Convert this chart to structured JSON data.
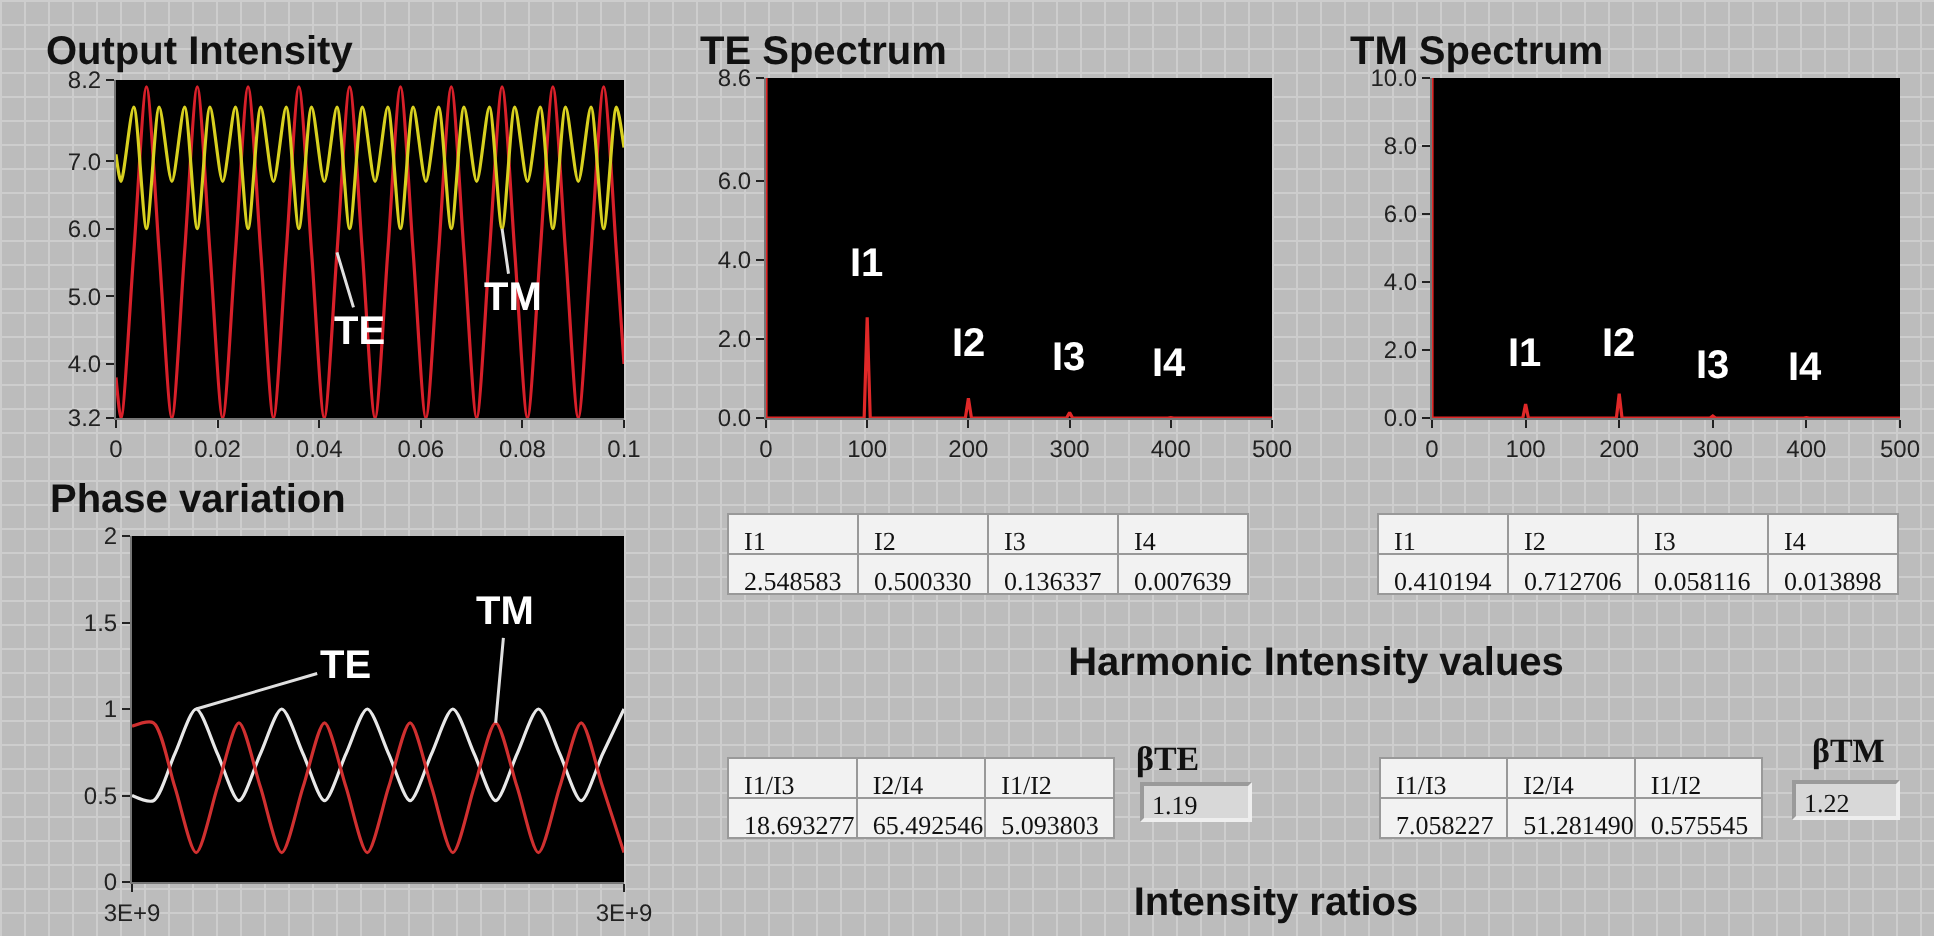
{
  "chart_data": [
    {
      "type": "line",
      "title": "Output Intensity",
      "x": [
        0,
        0.001,
        0.0035,
        0.006,
        0.0085,
        0.011,
        0.0135,
        0.016,
        0.0185,
        0.021,
        0.0235,
        0.026,
        0.0285,
        0.031,
        0.0335,
        0.036,
        0.0385,
        0.041,
        0.0435,
        0.046,
        0.0485,
        0.051,
        0.0535,
        0.056,
        0.0585,
        0.061,
        0.0635,
        0.066,
        0.0685,
        0.071,
        0.0735,
        0.076,
        0.0785,
        0.081,
        0.0835,
        0.086,
        0.0885,
        0.091,
        0.0935,
        0.096,
        0.0985,
        0.1
      ],
      "series": [
        {
          "name": "TE",
          "color": "#d8202a",
          "values": [
            3.8,
            3.2,
            5.65,
            8.1,
            5.65,
            3.2,
            5.65,
            8.1,
            5.65,
            3.2,
            5.65,
            8.1,
            5.65,
            3.2,
            5.65,
            8.1,
            5.65,
            3.2,
            5.65,
            8.1,
            5.65,
            3.2,
            5.65,
            8.1,
            5.65,
            3.2,
            5.65,
            8.1,
            5.65,
            3.2,
            5.65,
            8.1,
            5.65,
            3.2,
            5.65,
            8.1,
            5.65,
            3.2,
            5.65,
            8.1,
            5.65,
            4.0
          ]
        },
        {
          "name": "TM",
          "color": "#d8d020",
          "values": [
            7.1,
            6.7,
            7.8,
            6.0,
            7.8,
            6.7,
            7.8,
            6.0,
            7.8,
            6.7,
            7.8,
            6.0,
            7.8,
            6.7,
            7.8,
            6.0,
            7.8,
            6.7,
            7.8,
            6.0,
            7.8,
            6.7,
            7.8,
            6.0,
            7.8,
            6.7,
            7.8,
            6.0,
            7.8,
            6.7,
            7.8,
            6.0,
            7.8,
            6.7,
            7.8,
            6.0,
            7.8,
            6.7,
            7.8,
            6.0,
            7.8,
            7.2
          ]
        }
      ],
      "xlim": [
        0,
        0.1
      ],
      "xticks": [
        0,
        0.02,
        0.04,
        0.06,
        0.08,
        0.1
      ],
      "ylim": [
        3.2,
        8.2
      ],
      "yticks": [
        3.2,
        {
          "value": 4,
          "label": "4.0"
        },
        {
          "value": 5,
          "label": "5.0"
        },
        {
          "value": 6,
          "label": "6.0"
        },
        {
          "value": 7,
          "label": "7.0"
        },
        8.2
      ]
    },
    {
      "type": "line",
      "title": "TE Spectrum",
      "series": [
        {
          "color": "#e02828",
          "x": [
            0,
            0,
            3,
            97,
            100,
            103,
            197,
            200,
            203,
            297,
            300,
            303,
            397,
            400,
            403,
            500
          ],
          "values": [
            8.6,
            0,
            0,
            0,
            2.548583,
            0,
            0,
            0.50033,
            0,
            0,
            0.136337,
            0,
            0,
            0.007639,
            0,
            0
          ]
        }
      ],
      "xlim": [
        0,
        500
      ],
      "xticks": [
        0,
        100,
        200,
        300,
        400,
        500
      ],
      "ylim": [
        0,
        8.6
      ],
      "yticks": [
        {
          "value": 0,
          "label": "0.0"
        },
        {
          "value": 2,
          "label": "2.0"
        },
        {
          "value": 4,
          "label": "4.0"
        },
        {
          "value": 6,
          "label": "6.0"
        },
        8.6
      ],
      "annotations": [
        {
          "text": "I1",
          "x": 100,
          "y": 2.548583
        },
        {
          "text": "I2",
          "x": 200,
          "y": 0.50033
        },
        {
          "text": "I3",
          "x": 300,
          "y": 0.136337
        },
        {
          "text": "I4",
          "x": 400,
          "y": 0.007639
        }
      ]
    },
    {
      "type": "line",
      "title": "TM Spectrum",
      "series": [
        {
          "color": "#e02828",
          "x": [
            0,
            0,
            3,
            97,
            100,
            103,
            197,
            200,
            203,
            297,
            300,
            303,
            397,
            400,
            403,
            500
          ],
          "values": [
            10,
            0,
            0,
            0,
            0.410194,
            0,
            0,
            0.712706,
            0,
            0,
            0.058116,
            0,
            0,
            0.013898,
            0,
            0
          ]
        }
      ],
      "xlim": [
        0,
        500
      ],
      "xticks": [
        0,
        100,
        200,
        300,
        400,
        500
      ],
      "ylim": [
        0,
        10
      ],
      "yticks": [
        {
          "value": 0,
          "label": "0.0"
        },
        {
          "value": 2,
          "label": "2.0"
        },
        {
          "value": 4,
          "label": "4.0"
        },
        {
          "value": 6,
          "label": "6.0"
        },
        {
          "value": 8,
          "label": "8.0"
        },
        {
          "value": 10,
          "label": "10.0"
        }
      ],
      "annotations": [
        {
          "text": "I1",
          "x": 100,
          "y": 0.410194
        },
        {
          "text": "I2",
          "x": 200,
          "y": 0.712706
        },
        {
          "text": "I3",
          "x": 300,
          "y": 0.058116
        },
        {
          "text": "I4",
          "x": 400,
          "y": 0.013898
        }
      ]
    },
    {
      "type": "line",
      "title": "Phase variation",
      "categories": [
        "3E+9",
        null,
        null,
        null,
        null,
        null,
        null,
        null,
        null,
        null,
        null,
        null,
        null,
        null,
        null,
        null,
        null,
        null,
        null,
        null,
        null,
        null,
        null,
        "3E+9"
      ],
      "series": [
        {
          "name": "TE",
          "color": "#e8e8e8",
          "values": [
            0.5,
            0.47,
            0.74,
            1.0,
            0.74,
            0.47,
            0.74,
            1.0,
            0.74,
            0.47,
            0.74,
            1.0,
            0.74,
            0.47,
            0.74,
            1.0,
            0.74,
            0.47,
            0.74,
            1.0,
            0.74,
            0.47,
            0.74,
            1.0
          ]
        },
        {
          "name": "TM",
          "color": "#d03030",
          "values": [
            0.9,
            0.92,
            0.55,
            0.17,
            0.55,
            0.92,
            0.55,
            0.17,
            0.55,
            0.92,
            0.55,
            0.17,
            0.55,
            0.92,
            0.55,
            0.17,
            0.55,
            0.92,
            0.55,
            0.17,
            0.55,
            0.92,
            0.55,
            0.17
          ]
        }
      ],
      "ylim": [
        0,
        2
      ],
      "yticks": [
        0,
        0.5,
        1,
        1.5,
        2
      ]
    },
    {
      "type": "other",
      "categories": [
        "I1",
        "I2",
        "I3",
        "I4"
      ],
      "values": [
        2.548583,
        0.50033,
        0.136337,
        0.007639
      ],
      "value_labels": [
        "2.548583",
        "0.500330",
        "0.136337",
        "0.007639"
      ]
    },
    {
      "type": "other",
      "categories": [
        "I1",
        "I2",
        "I3",
        "I4"
      ],
      "values": [
        0.410194,
        0.712706,
        0.058116,
        0.013898
      ],
      "value_labels": [
        "0.410194",
        "0.712706",
        "0.058116",
        "0.013898"
      ]
    },
    {
      "type": "other",
      "title": "Harmonic Intensity values"
    },
    {
      "type": "other",
      "categories": [
        "I1/I3",
        "I2/I4",
        "I1/I2"
      ],
      "values": [
        18.693277,
        65.492546,
        5.093803
      ],
      "value_labels": [
        "18.693277",
        "65.492546",
        "5.093803"
      ]
    },
    {
      "type": "other",
      "title": "βTE",
      "values": [
        1.19
      ],
      "data_labels": true
    },
    {
      "type": "other",
      "categories": [
        "I1/I3",
        "I2/I4",
        "I1/I2"
      ],
      "values": [
        7.058227,
        51.28149,
        0.575545
      ],
      "value_labels": [
        "7.058227",
        "51.281490",
        "0.575545"
      ]
    },
    {
      "type": "other",
      "title": "βTM",
      "values": [
        1.22
      ],
      "data_labels": true
    },
    {
      "type": "other",
      "title": "Intensity ratios"
    }
  ]
}
